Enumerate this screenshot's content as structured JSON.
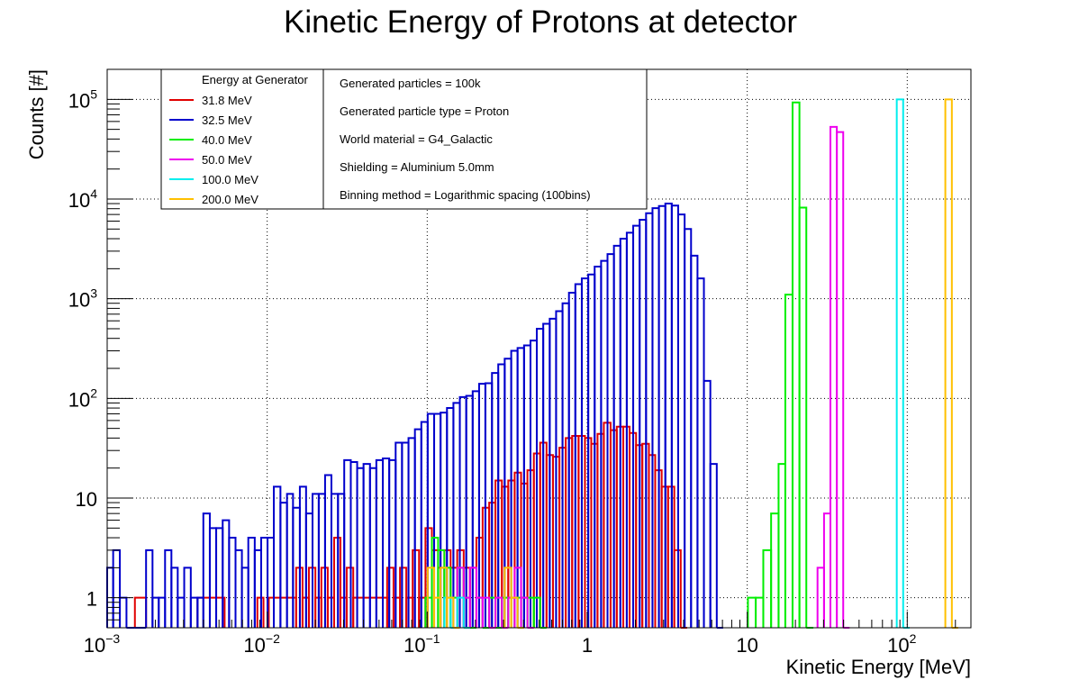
{
  "chart_data": {
    "type": "histogram",
    "title": "Kinetic Energy of Protons at detector",
    "xlabel": "Kinetic Energy [MeV]",
    "ylabel": "Counts [#]",
    "x_scale": "log",
    "y_scale": "log",
    "xlim": [
      0.001,
      250
    ],
    "ylim": [
      0.5,
      200000
    ],
    "grid": true,
    "x_ticks": [
      {
        "value": 0.001,
        "base": "10",
        "exp": "−3"
      },
      {
        "value": 0.01,
        "base": "10",
        "exp": "−2"
      },
      {
        "value": 0.1,
        "base": "10",
        "exp": "−1"
      },
      {
        "value": 1,
        "base": "1",
        "exp": ""
      },
      {
        "value": 10,
        "base": "10",
        "exp": ""
      },
      {
        "value": 100,
        "base": "10",
        "exp": "2"
      }
    ],
    "y_ticks": [
      {
        "value": 1,
        "base": "1",
        "exp": ""
      },
      {
        "value": 10,
        "base": "10",
        "exp": ""
      },
      {
        "value": 100,
        "base": "10",
        "exp": "2"
      },
      {
        "value": 1000,
        "base": "10",
        "exp": "3"
      },
      {
        "value": 10000,
        "base": "10",
        "exp": "4"
      },
      {
        "value": 100000,
        "base": "10",
        "exp": "5"
      }
    ],
    "legend_title": "Energy at Generator",
    "legend_position": "top-left",
    "series": [
      {
        "name": "31.8 MeV",
        "color": "#e00000",
        "bins": [
          [
            0.00149,
            0.00175,
            1
          ],
          [
            0.00367,
            0.00542,
            1
          ],
          [
            0.00868,
            0.00948,
            1
          ],
          [
            0.01023,
            0.01517,
            1
          ],
          [
            0.01517,
            0.01663,
            2
          ],
          [
            0.01663,
            0.01822,
            1
          ],
          [
            0.01822,
            0.02,
            2
          ],
          [
            0.02,
            0.0218,
            1
          ],
          [
            0.0218,
            0.0239,
            2
          ],
          [
            0.0239,
            0.0262,
            1
          ],
          [
            0.0262,
            0.0287,
            4
          ],
          [
            0.0287,
            0.0314,
            1
          ],
          [
            0.0314,
            0.0345,
            2
          ],
          [
            0.0345,
            0.0562,
            1
          ],
          [
            0.0562,
            0.0616,
            2
          ],
          [
            0.0616,
            0.0676,
            1
          ],
          [
            0.0676,
            0.074,
            2
          ],
          [
            0.074,
            0.0811,
            1
          ],
          [
            0.0811,
            0.0889,
            3
          ],
          [
            0.0889,
            0.0975,
            1
          ],
          [
            0.0975,
            0.107,
            5
          ],
          [
            0.107,
            0.117,
            3
          ],
          [
            0.117,
            0.128,
            2
          ],
          [
            0.128,
            0.14,
            3
          ],
          [
            0.14,
            0.154,
            2
          ],
          [
            0.154,
            0.169,
            3
          ],
          [
            0.169,
            0.185,
            2
          ],
          [
            0.185,
            0.203,
            2
          ],
          [
            0.203,
            0.222,
            4
          ],
          [
            0.222,
            0.244,
            8
          ],
          [
            0.244,
            0.267,
            9
          ],
          [
            0.267,
            0.293,
            15
          ],
          [
            0.293,
            0.321,
            13
          ],
          [
            0.321,
            0.352,
            15
          ],
          [
            0.352,
            0.386,
            18
          ],
          [
            0.386,
            0.423,
            14
          ],
          [
            0.423,
            0.464,
            19
          ],
          [
            0.464,
            0.508,
            28
          ],
          [
            0.508,
            0.557,
            36
          ],
          [
            0.557,
            0.611,
            27
          ],
          [
            0.611,
            0.67,
            26
          ],
          [
            0.67,
            0.734,
            32
          ],
          [
            0.734,
            0.805,
            40
          ],
          [
            0.805,
            0.883,
            42
          ],
          [
            0.883,
            0.968,
            42
          ],
          [
            0.968,
            1.06,
            40
          ],
          [
            1.06,
            1.16,
            35
          ],
          [
            1.16,
            1.27,
            44
          ],
          [
            1.27,
            1.4,
            57
          ],
          [
            1.4,
            1.53,
            48
          ],
          [
            1.53,
            1.68,
            52
          ],
          [
            1.68,
            1.84,
            52
          ],
          [
            1.84,
            2.02,
            45
          ],
          [
            2.02,
            2.21,
            34
          ],
          [
            2.21,
            2.43,
            35
          ],
          [
            2.43,
            2.66,
            27
          ],
          [
            2.66,
            2.92,
            19
          ],
          [
            2.92,
            3.2,
            13
          ],
          [
            3.2,
            3.5,
            13
          ],
          [
            3.5,
            3.84,
            3
          ],
          [
            3.84,
            4.21,
            0
          ]
        ]
      },
      {
        "name": "32.5 MeV",
        "color": "#0000cc",
        "bins": [
          [
            0.001,
            0.00109,
            2
          ],
          [
            0.00109,
            0.0012,
            3
          ],
          [
            0.0012,
            0.00132,
            1
          ],
          [
            0.00132,
            0.00149,
            0
          ],
          [
            0.00149,
            0.00175,
            0
          ],
          [
            0.00175,
            0.00192,
            3
          ],
          [
            0.00192,
            0.0021,
            1
          ],
          [
            0.0021,
            0.0023,
            1
          ],
          [
            0.0023,
            0.00252,
            3
          ],
          [
            0.00252,
            0.00276,
            2
          ],
          [
            0.00276,
            0.00303,
            1
          ],
          [
            0.00303,
            0.00333,
            2
          ],
          [
            0.00333,
            0.00367,
            1
          ],
          [
            0.00367,
            0.00399,
            1
          ],
          [
            0.00399,
            0.00438,
            7
          ],
          [
            0.00438,
            0.0048,
            5
          ],
          [
            0.0048,
            0.00527,
            5
          ],
          [
            0.00527,
            0.00578,
            6
          ],
          [
            0.00578,
            0.00634,
            4
          ],
          [
            0.00634,
            0.00695,
            3
          ],
          [
            0.00695,
            0.00762,
            2
          ],
          [
            0.00762,
            0.00836,
            4
          ],
          [
            0.00836,
            0.00917,
            3
          ],
          [
            0.00917,
            0.01005,
            4
          ],
          [
            0.01005,
            0.011,
            4
          ],
          [
            0.011,
            0.0121,
            13
          ],
          [
            0.0121,
            0.0133,
            9
          ],
          [
            0.0133,
            0.0145,
            11
          ],
          [
            0.0145,
            0.016,
            8
          ],
          [
            0.016,
            0.0175,
            13
          ],
          [
            0.0175,
            0.0192,
            7
          ],
          [
            0.0192,
            0.021,
            11
          ],
          [
            0.021,
            0.023,
            11
          ],
          [
            0.023,
            0.0252,
            17
          ],
          [
            0.0252,
            0.0277,
            11
          ],
          [
            0.0277,
            0.0303,
            11
          ],
          [
            0.0303,
            0.0333,
            24
          ],
          [
            0.0333,
            0.0365,
            23
          ],
          [
            0.0365,
            0.04,
            20
          ],
          [
            0.04,
            0.0439,
            22
          ],
          [
            0.0439,
            0.0481,
            20
          ],
          [
            0.0481,
            0.0528,
            24
          ],
          [
            0.0528,
            0.0579,
            25
          ],
          [
            0.0579,
            0.0635,
            24
          ],
          [
            0.0635,
            0.0696,
            36
          ],
          [
            0.0696,
            0.0764,
            36
          ],
          [
            0.0764,
            0.0838,
            40
          ],
          [
            0.0838,
            0.0919,
            49
          ],
          [
            0.0919,
            0.1007,
            58
          ],
          [
            0.1007,
            0.1105,
            70
          ],
          [
            0.1105,
            0.1212,
            70
          ],
          [
            0.1212,
            0.1329,
            72
          ],
          [
            0.1329,
            0.1458,
            80
          ],
          [
            0.1458,
            0.1599,
            90
          ],
          [
            0.1599,
            0.1754,
            103
          ],
          [
            0.1754,
            0.1924,
            106
          ],
          [
            0.1924,
            0.211,
            118
          ],
          [
            0.211,
            0.231,
            140
          ],
          [
            0.231,
            0.254,
            142
          ],
          [
            0.254,
            0.278,
            180
          ],
          [
            0.278,
            0.305,
            220
          ],
          [
            0.305,
            0.335,
            250
          ],
          [
            0.335,
            0.367,
            300
          ],
          [
            0.367,
            0.403,
            320
          ],
          [
            0.403,
            0.442,
            340
          ],
          [
            0.442,
            0.484,
            380
          ],
          [
            0.484,
            0.531,
            500
          ],
          [
            0.531,
            0.583,
            560
          ],
          [
            0.583,
            0.639,
            630
          ],
          [
            0.639,
            0.701,
            750
          ],
          [
            0.701,
            0.769,
            900
          ],
          [
            0.769,
            0.843,
            1150
          ],
          [
            0.843,
            0.925,
            1400
          ],
          [
            0.925,
            1.015,
            1600
          ],
          [
            1.015,
            1.113,
            1750
          ],
          [
            1.113,
            1.221,
            2100
          ],
          [
            1.221,
            1.339,
            2400
          ],
          [
            1.339,
            1.469,
            2800
          ],
          [
            1.469,
            1.611,
            3400
          ],
          [
            1.611,
            1.767,
            4000
          ],
          [
            1.767,
            1.938,
            4600
          ],
          [
            1.938,
            2.126,
            5400
          ],
          [
            2.126,
            2.332,
            6200
          ],
          [
            2.332,
            2.558,
            7200
          ],
          [
            2.558,
            2.806,
            8100
          ],
          [
            2.806,
            3.078,
            8500
          ],
          [
            3.078,
            3.376,
            9000
          ],
          [
            3.376,
            3.703,
            8600
          ],
          [
            3.703,
            4.062,
            7000
          ],
          [
            4.062,
            4.456,
            5000
          ],
          [
            4.456,
            4.888,
            2700
          ],
          [
            4.888,
            5.361,
            1600
          ],
          [
            5.361,
            5.881,
            150
          ],
          [
            5.881,
            6.451,
            22
          ],
          [
            6.451,
            7.077,
            0
          ]
        ]
      },
      {
        "name": "40.0 MeV",
        "color": "#00ee00",
        "bins": [
          [
            0.0975,
            0.107,
            1
          ],
          [
            0.107,
            0.117,
            4
          ],
          [
            0.117,
            0.128,
            3
          ],
          [
            0.128,
            0.14,
            2
          ],
          [
            0.14,
            0.154,
            1
          ],
          [
            0.154,
            0.169,
            2
          ],
          [
            0.169,
            0.185,
            1
          ],
          [
            0.185,
            0.203,
            0
          ],
          [
            0.203,
            0.222,
            1
          ],
          [
            0.222,
            0.244,
            0
          ],
          [
            0.244,
            0.267,
            1
          ],
          [
            0.267,
            0.293,
            0
          ],
          [
            0.293,
            0.321,
            1
          ],
          [
            0.321,
            0.352,
            1
          ],
          [
            0.352,
            0.386,
            1
          ],
          [
            0.386,
            0.423,
            1
          ],
          [
            0.423,
            0.464,
            1
          ],
          [
            0.464,
            0.508,
            1
          ],
          [
            0.508,
            0.557,
            0
          ],
          [
            10.1,
            11.3,
            1
          ],
          [
            11.3,
            12.6,
            1
          ],
          [
            12.6,
            14.1,
            3
          ],
          [
            14.1,
            15.7,
            7
          ],
          [
            15.7,
            17.3,
            22
          ],
          [
            17.3,
            19.2,
            1100
          ],
          [
            19.2,
            21.2,
            93000
          ],
          [
            21.2,
            23.4,
            8200
          ],
          [
            23.4,
            25.9,
            0
          ]
        ]
      },
      {
        "name": "50.0 MeV",
        "color": "#ee00ee",
        "bins": [
          [
            0.154,
            0.169,
            2
          ],
          [
            0.169,
            0.185,
            1
          ],
          [
            0.185,
            0.203,
            2
          ],
          [
            0.203,
            0.222,
            1
          ],
          [
            0.222,
            0.244,
            1
          ],
          [
            0.244,
            0.267,
            0
          ],
          [
            0.267,
            0.293,
            1
          ],
          [
            0.293,
            0.321,
            0
          ],
          [
            0.321,
            0.352,
            1
          ],
          [
            0.352,
            0.386,
            2
          ],
          [
            0.386,
            0.423,
            1
          ],
          [
            0.423,
            0.464,
            0
          ],
          [
            27.5,
            30.2,
            2
          ],
          [
            30.2,
            33.1,
            7
          ],
          [
            33.1,
            36.3,
            53000
          ],
          [
            36.3,
            39.8,
            47000
          ],
          [
            39.8,
            43.6,
            0
          ]
        ]
      },
      {
        "name": "100.0 MeV",
        "color": "#00eeee",
        "bins": [
          [
            0.128,
            0.14,
            1
          ],
          [
            0.14,
            0.154,
            0
          ],
          [
            0.154,
            0.169,
            1
          ],
          [
            0.169,
            0.185,
            0
          ],
          [
            86.0,
            94.3,
            100000
          ],
          [
            94.3,
            103.4,
            0
          ]
        ]
      },
      {
        "name": "200.0 MeV",
        "color": "#ffc000",
        "bins": [
          [
            0.1007,
            0.1105,
            2
          ],
          [
            0.1105,
            0.1212,
            1
          ],
          [
            0.1212,
            0.1329,
            2
          ],
          [
            0.1329,
            0.1458,
            1
          ],
          [
            0.1458,
            0.1599,
            0
          ],
          [
            0.305,
            0.335,
            2
          ],
          [
            0.335,
            0.367,
            1
          ],
          [
            0.367,
            0.403,
            0
          ],
          [
            173,
            190,
            100000
          ],
          [
            190,
            208,
            0
          ]
        ]
      }
    ],
    "info_box": [
      "Generated particles = 100k",
      "Generated particle type = Proton",
      "World material = G4_Galactic",
      "Shielding = Aluminium 5.0mm",
      "Binning method = Logarithmic spacing (100bins)"
    ]
  }
}
